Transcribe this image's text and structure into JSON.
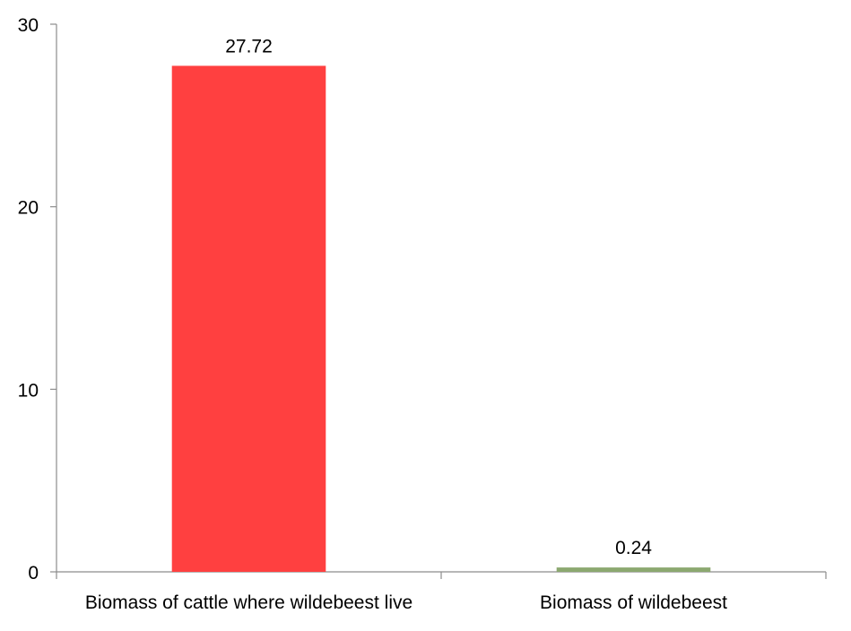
{
  "chart_data": {
    "type": "bar",
    "title": "",
    "xlabel": "",
    "ylabel": "",
    "categories": [
      "Biomass of cattle where wildebeest live",
      "Biomass of wildebeest"
    ],
    "values": [
      27.72,
      0.24
    ],
    "data_labels": [
      "27.72",
      "0.24"
    ],
    "bar_colors": [
      "#ff4040",
      "#8ca870"
    ],
    "ylim": [
      0,
      30
    ],
    "yticks": [
      0,
      10,
      20,
      30
    ],
    "ytick_labels": [
      "0",
      "10",
      "20",
      "30"
    ],
    "grid": false,
    "legend": "none"
  }
}
